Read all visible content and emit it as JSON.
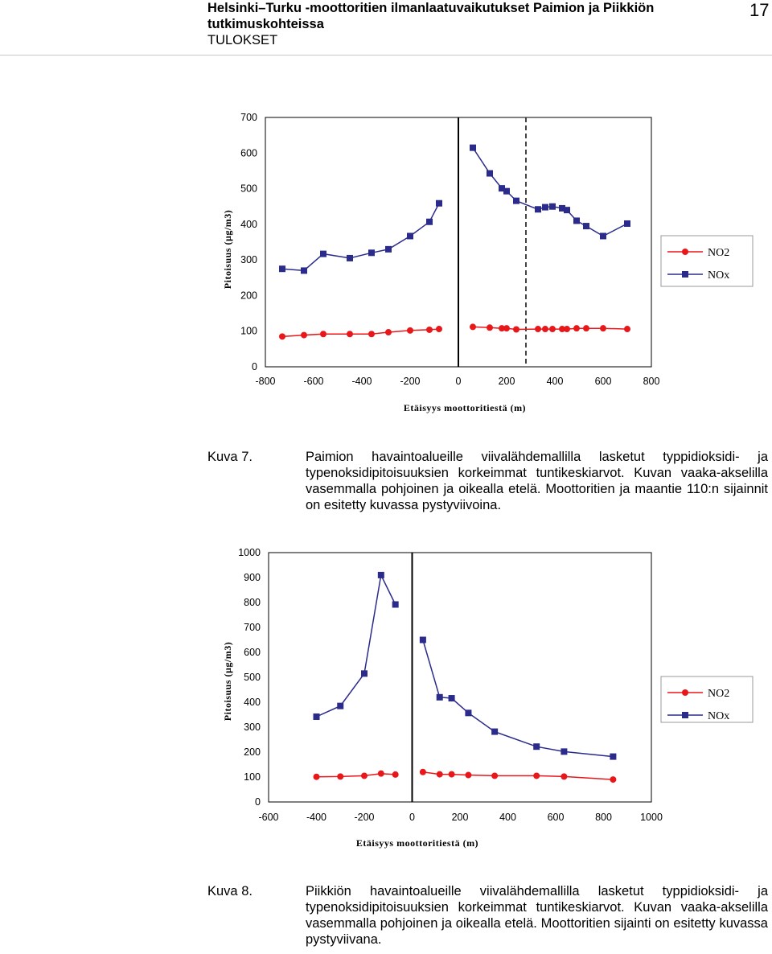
{
  "header": {
    "title": "Helsinki–Turku -moottoritien ilmanlaatuvaikutukset Paimion ja Piikkiön tutkimuskohteissa",
    "section": "TULOKSET",
    "page_number": "17"
  },
  "chart_data": [
    {
      "type": "line",
      "title": "",
      "xlabel": "Etäisyys moottoritiestä (m)",
      "ylabel": "Pitoisuus (µg/m3)",
      "xlim": [
        -800,
        800
      ],
      "ylim": [
        0,
        700
      ],
      "x_ticks": [
        "-800",
        "-600",
        "-400",
        "-200",
        "0",
        "200",
        "400",
        "600",
        "800"
      ],
      "y_ticks": [
        "700",
        "600",
        "500",
        "400",
        "300",
        "200",
        "100",
        "0"
      ],
      "grid": false,
      "legend_position": "right",
      "vertical_lines": [
        {
          "x": 0,
          "style": "solid"
        },
        {
          "x": 280,
          "style": "dashed"
        }
      ],
      "series": [
        {
          "name": "NO2",
          "color": "#e8171a",
          "marker": "circle",
          "segments": [
            {
              "x": [
                -730,
                -640,
                -560,
                -450,
                -360,
                -290,
                -200,
                -120,
                -80
              ],
              "y": [
                85,
                89,
                92,
                92,
                92,
                97,
                102,
                104,
                106
              ]
            },
            {
              "x": [
                60,
                130,
                180,
                200,
                240,
                330,
                360,
                390,
                430,
                450,
                490,
                530,
                600,
                700
              ],
              "y": [
                112,
                110,
                108,
                108,
                105,
                106,
                106,
                106,
                106,
                106,
                108,
                108,
                108,
                106
              ]
            }
          ]
        },
        {
          "name": "NOx",
          "color": "#2b2b8c",
          "marker": "square",
          "segments": [
            {
              "x": [
                -730,
                -640,
                -560,
                -450,
                -360,
                -290,
                -200,
                -120,
                -80
              ],
              "y": [
                275,
                270,
                317,
                305,
                320,
                330,
                367,
                407,
                459
              ]
            },
            {
              "x": [
                60,
                130,
                180,
                200,
                240,
                330,
                360,
                390,
                430,
                450,
                490,
                530,
                600,
                700
              ],
              "y": [
                615,
                543,
                501,
                493,
                466,
                442,
                448,
                450,
                445,
                440,
                410,
                395,
                367,
                402
              ]
            }
          ]
        }
      ]
    },
    {
      "type": "line",
      "title": "",
      "xlabel": "Etäisyys moottoritiestä (m)",
      "ylabel": "Pitoisuus (µg/m3)",
      "xlim": [
        -600,
        1000
      ],
      "ylim": [
        0,
        1000
      ],
      "x_ticks": [
        "-600",
        "-400",
        "-200",
        "0",
        "200",
        "400",
        "600",
        "800",
        "1000"
      ],
      "y_ticks": [
        "1000",
        "900",
        "800",
        "700",
        "600",
        "500",
        "400",
        "300",
        "200",
        "100",
        "0"
      ],
      "grid": false,
      "legend_position": "right",
      "vertical_lines": [
        {
          "x": 0,
          "style": "solid"
        }
      ],
      "series": [
        {
          "name": "NO2",
          "color": "#e8171a",
          "marker": "circle",
          "segments": [
            {
              "x": [
                -400,
                -300,
                -200,
                -130,
                -70
              ],
              "y": [
                101,
                102,
                105,
                114,
                110
              ]
            },
            {
              "x": [
                45,
                115,
                165,
                235,
                345,
                520,
                635,
                840
              ],
              "y": [
                120,
                111,
                111,
                108,
                105,
                105,
                102,
                90
              ]
            }
          ]
        },
        {
          "name": "NOx",
          "color": "#2b2b8c",
          "marker": "square",
          "segments": [
            {
              "x": [
                -400,
                -300,
                -200,
                -130,
                -70
              ],
              "y": [
                342,
                385,
                515,
                910,
                792
              ]
            },
            {
              "x": [
                45,
                115,
                165,
                235,
                345,
                520,
                635,
                840
              ],
              "y": [
                650,
                420,
                416,
                357,
                282,
                222,
                202,
                182
              ]
            }
          ]
        }
      ]
    }
  ],
  "captions": [
    {
      "label": "Kuva 7.",
      "text": "Paimion havaintoalueille viivalähdemallilla lasketut typpidioksidi- ja typenoksidipitoisuuksien korkeimmat tuntikeskiarvot. Kuvan vaaka-akselilla vasemmalla pohjoinen ja oikealla etelä. Moottoritien ja maantie 110:n sijainnit on esitetty kuvassa pystyviivoina."
    },
    {
      "label": "Kuva 8.",
      "text": "Piikkiön havaintoalueille viivalähdemallilla lasketut typpidioksidi- ja typenoksidipitoisuuksien korkeimmat tuntikeskiarvot. Kuvan vaaka-akselilla vasemmalla pohjoinen ja oikealla etelä. Moottoritien sijainti on esitetty kuvassa pystyviivana."
    }
  ]
}
